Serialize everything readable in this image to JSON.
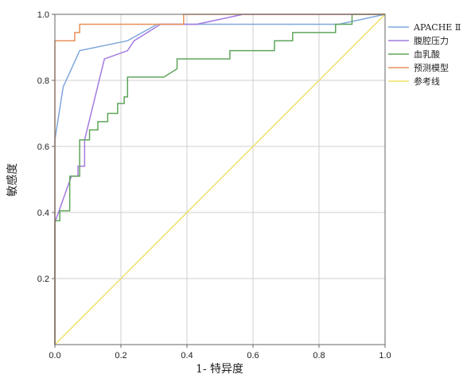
{
  "chart_data": {
    "type": "line",
    "title": "",
    "xlabel": "1- 特异度",
    "ylabel": "敏感度",
    "xlim": [
      0,
      1
    ],
    "ylim": [
      0,
      1
    ],
    "xticks": [
      "0.0",
      "0.2",
      "0.4",
      "0.6",
      "0.8",
      "1.0"
    ],
    "yticks": [
      "0.2",
      "0.4",
      "0.6",
      "0.8",
      "1.0"
    ],
    "grid": true,
    "legend_position": "right",
    "series": [
      {
        "name": "APACHE Ⅱ",
        "color": "#7fa8dc",
        "x": [
          0,
          0,
          0.025,
          0.075,
          0.22,
          0.31,
          0.86,
          1.0
        ],
        "y": [
          0,
          0.62,
          0.78,
          0.89,
          0.92,
          0.97,
          0.97,
          1.0
        ]
      },
      {
        "name": "腹腔压力",
        "color": "#a27be0",
        "x": [
          0,
          0,
          0.05,
          0.07,
          0.07,
          0.09,
          0.09,
          0.15,
          0.22,
          0.24,
          0.32,
          0.43,
          0.57,
          0.87,
          1.0
        ],
        "y": [
          0,
          0.37,
          0.51,
          0.51,
          0.54,
          0.54,
          0.62,
          0.865,
          0.89,
          0.92,
          0.97,
          0.97,
          1.0,
          1.0,
          1.0
        ]
      },
      {
        "name": "血乳酸",
        "color": "#5fa55a",
        "x": [
          0,
          0,
          0.015,
          0.015,
          0.045,
          0.045,
          0.075,
          0.075,
          0.105,
          0.105,
          0.13,
          0.13,
          0.16,
          0.16,
          0.19,
          0.19,
          0.21,
          0.21,
          0.22,
          0.22,
          0.33,
          0.37,
          0.37,
          0.53,
          0.53,
          0.665,
          0.665,
          0.72,
          0.72,
          0.85,
          0.85,
          0.9,
          0.9,
          0.98,
          1.0
        ],
        "y": [
          0,
          0.375,
          0.375,
          0.405,
          0.405,
          0.51,
          0.51,
          0.62,
          0.62,
          0.65,
          0.65,
          0.675,
          0.675,
          0.7,
          0.7,
          0.73,
          0.73,
          0.75,
          0.75,
          0.81,
          0.81,
          0.835,
          0.865,
          0.865,
          0.89,
          0.89,
          0.92,
          0.92,
          0.945,
          0.945,
          0.97,
          0.97,
          1.0,
          1.0,
          1.0
        ]
      },
      {
        "name": "预测模型",
        "color": "#e8905a",
        "x": [
          0,
          0,
          0.06,
          0.06,
          0.075,
          0.075,
          0.39,
          0.39,
          1.0
        ],
        "y": [
          0,
          0.92,
          0.92,
          0.945,
          0.945,
          0.97,
          0.97,
          1.0,
          1.0
        ]
      },
      {
        "name": "参考线",
        "color": "#f0e06a",
        "x": [
          0,
          1
        ],
        "y": [
          0,
          1
        ]
      }
    ]
  }
}
